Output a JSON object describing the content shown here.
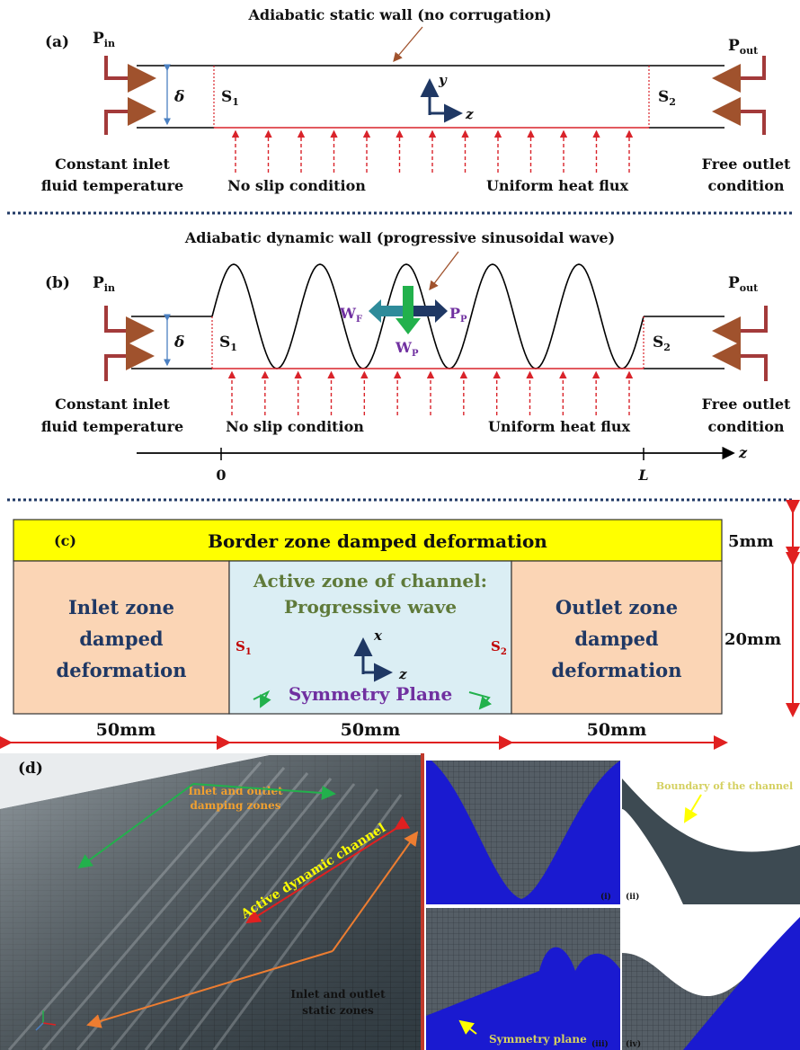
{
  "panel_a": {
    "label": "(a)",
    "top_wall": "Adiabatic static wall (no corrugation)",
    "p_in": "P",
    "p_in_sub": "in",
    "p_out": "P",
    "p_out_sub": "out",
    "delta": "δ",
    "s1": "S",
    "s1_sub": "1",
    "s2": "S",
    "s2_sub": "2",
    "axis_y": "y",
    "axis_z": "z",
    "inlet_line1": "Constant inlet",
    "inlet_line2": "fluid temperature",
    "no_slip": "No slip condition",
    "heat_flux": "Uniform heat flux",
    "outlet_line1": "Free outlet",
    "outlet_line2": "condition"
  },
  "panel_b": {
    "label": "(b)",
    "top_wall": "Adiabatic dynamic wall (progressive sinusoidal wave)",
    "p_in": "P",
    "p_in_sub": "in",
    "p_out": "P",
    "p_out_sub": "out",
    "delta": "δ",
    "s1": "S",
    "s1_sub": "1",
    "s2": "S",
    "s2_sub": "2",
    "wf": "W",
    "wf_sub": "F",
    "wp": "W",
    "wp_sub": "P",
    "pp": "P",
    "pp_sub": "P",
    "inlet_line1": "Constant inlet",
    "inlet_line2": "fluid temperature",
    "no_slip": "No slip condition",
    "heat_flux": "Uniform heat flux",
    "outlet_line1": "Free outlet",
    "outlet_line2": "condition",
    "axis_z": "z",
    "tick_0": "0",
    "tick_L": "L"
  },
  "panel_c": {
    "label": "(c)",
    "border_zone": "Border zone damped deformation",
    "inlet_zone": [
      "Inlet zone",
      "damped",
      "deformation"
    ],
    "active_zone": [
      "Active zone of channel:",
      "Progressive wave"
    ],
    "outlet_zone": [
      "Outlet zone",
      "damped",
      "deformation"
    ],
    "symmetry": "Symmetry Plane",
    "s1": "S",
    "s1_sub": "1",
    "s2": "S",
    "s2_sub": "2",
    "axis_x": "x",
    "axis_z": "z",
    "dim_5": "5mm",
    "dim_20": "20mm",
    "dim_50a": "50mm",
    "dim_50b": "50mm",
    "dim_50c": "50mm",
    "colors": {
      "border": "#ffff00",
      "side": "#fbd5b5",
      "active": "#dbeef4",
      "title_text": "#5f7a3a",
      "symmetry": "#7030a0"
    }
  },
  "panel_d": {
    "label": "(d)",
    "damping": [
      "Inlet and outlet",
      "damping zones"
    ],
    "active": "Active dynamic channel",
    "static": [
      "Inlet and outlet",
      "static zones"
    ],
    "boundary": "Boundary of the channel",
    "symmetry": "Symmetry plane",
    "sub_i": "(i)",
    "sub_ii": "(ii)",
    "sub_iii": "(iii)",
    "sub_iv": "(iv)"
  }
}
